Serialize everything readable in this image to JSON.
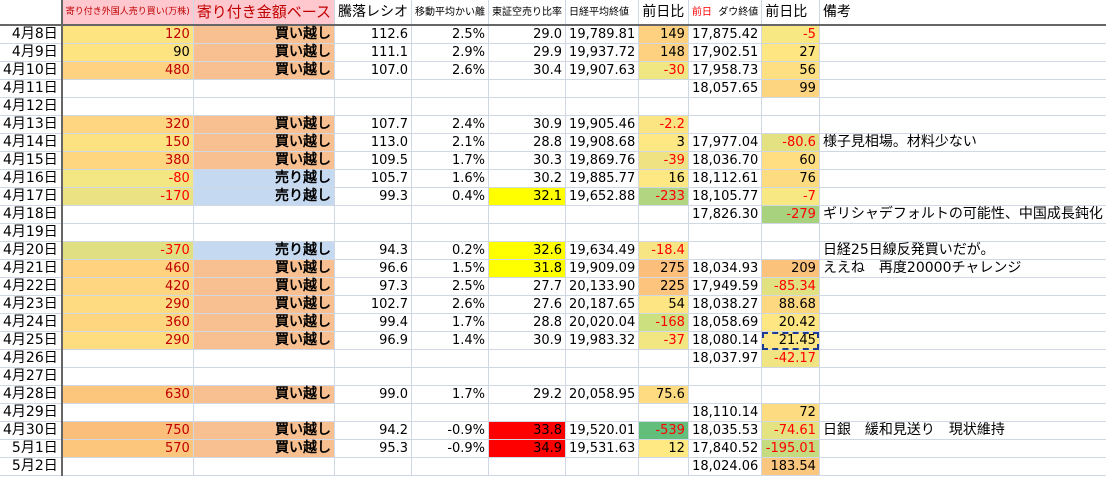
{
  "headers": {
    "date": "",
    "foreign": "寄り付き外国人売り買い(万株)",
    "base": "寄り付き金額ベース",
    "toraku": "騰落レシオ",
    "kairi": "移動平均かい離",
    "karauri": "東証空売り比率",
    "nikkei": "日経平均終値",
    "nikkei_chg": "前日比",
    "dow_prefix": "前日",
    "dow": "ダウ終値",
    "dow_chg": "前日比",
    "note": "備考"
  },
  "colors": {
    "buy_bg": "#f8c090",
    "sell_bg": "#c5d9f1",
    "karauri_warn": "#ffff00",
    "karauri_alert": "#ff0000",
    "negative_text": "#ff0000",
    "positive_foreign_text": "#c00000"
  },
  "rows": [
    {
      "date": "4月8日",
      "foreign": "120",
      "fbg": "#fde481",
      "base": "買い越し",
      "toraku": "112.6",
      "kairi": "2.5%",
      "karauri": "29.0",
      "nikkei": "19,789.81",
      "nchg": "149",
      "nbg": "#fdd17f",
      "dow": "17,875.42",
      "dchg": "-5",
      "dbg": "#f8e883",
      "note": ""
    },
    {
      "date": "4月9日",
      "foreign": "90",
      "fbg": "#fde481",
      "base": "買い越し",
      "toraku": "111.1",
      "kairi": "2.9%",
      "karauri": "29.9",
      "nikkei": "19,937.72",
      "nchg": "148",
      "nbg": "#fdd17f",
      "dow": "17,902.51",
      "dchg": "27",
      "dbg": "#fee683",
      "note": ""
    },
    {
      "date": "4月10日",
      "foreign": "480",
      "fbg": "#fed280",
      "base": "買い越し",
      "toraku": "107.0",
      "kairi": "2.6%",
      "karauri": "30.4",
      "nikkei": "19,907.63",
      "nchg": "-30",
      "nbg": "#f0e682",
      "dow": "17,958.73",
      "dchg": "56",
      "dbg": "#fedf81",
      "note": ""
    },
    {
      "date": "4月11日",
      "foreign": "",
      "base": "",
      "toraku": "",
      "kairi": "",
      "karauri": "",
      "nikkei": "",
      "nchg": "",
      "dow": "18,057.65",
      "dchg": "99",
      "dbg": "#fdd47f",
      "note": ""
    },
    {
      "date": "4月12日",
      "foreign": "",
      "base": "",
      "toraku": "",
      "kairi": "",
      "karauri": "",
      "nikkei": "",
      "nchg": "",
      "dow": "",
      "dchg": "",
      "note": ""
    },
    {
      "date": "4月13日",
      "foreign": "320",
      "fbg": "#fed580",
      "base": "買い越し",
      "toraku": "107.7",
      "kairi": "2.4%",
      "karauri": "30.9",
      "nikkei": "19,905.46",
      "nchg": "-2.2",
      "nbg": "#fbe583",
      "dow": "",
      "dchg": "",
      "note": ""
    },
    {
      "date": "4月14日",
      "foreign": "150",
      "fbg": "#fde282",
      "base": "買い越し",
      "toraku": "113.0",
      "kairi": "2.1%",
      "karauri": "28.8",
      "nikkei": "19,908.68",
      "nchg": "3",
      "nbg": "#fde883",
      "dow": "17,977.04",
      "dchg": "-80.6",
      "dbg": "#e3e182",
      "note": "様子見相場。材料少ない"
    },
    {
      "date": "4月15日",
      "foreign": "380",
      "fbg": "#fed680",
      "base": "買い越し",
      "toraku": "109.5",
      "kairi": "1.7%",
      "karauri": "30.3",
      "nikkei": "19,869.76",
      "nchg": "-39",
      "nbg": "#eee283",
      "dow": "18,036.70",
      "dchg": "60",
      "dbg": "#fede81",
      "note": ""
    },
    {
      "date": "4月16日",
      "foreign": "-80",
      "fbg": "#f3e784",
      "base": "売り越し",
      "toraku": "105.7",
      "kairi": "1.6%",
      "karauri": "30.2",
      "nikkei": "19,885.77",
      "nchg": "16",
      "nbg": "#fde883",
      "dow": "18,112.61",
      "dchg": "76",
      "dbg": "#fddb80",
      "note": ""
    },
    {
      "date": "4月17日",
      "foreign": "-170",
      "fbg": "#eae283",
      "base": "売り越し",
      "toraku": "99.3",
      "kairi": "0.4%",
      "karauri": "32.1",
      "kbg": "#ffff00",
      "nikkei": "19,652.88",
      "nchg": "-233",
      "nbg": "#b1d580",
      "dow": "18,105.77",
      "dchg": "-7",
      "dbg": "#f8e883",
      "note": ""
    },
    {
      "date": "4月18日",
      "foreign": "",
      "base": "",
      "toraku": "",
      "kairi": "",
      "karauri": "",
      "nikkei": "",
      "nchg": "",
      "dow": "17,826.30",
      "dchg": "-279",
      "dbg": "#a9d27f",
      "note": "ギリシャデフォルトの可能性、中国成長鈍化"
    },
    {
      "date": "4月19日",
      "foreign": "",
      "base": "",
      "toraku": "",
      "kairi": "",
      "karauri": "",
      "nikkei": "",
      "nchg": "",
      "dow": "",
      "dchg": "",
      "note": ""
    },
    {
      "date": "4月20日",
      "foreign": "-370",
      "fbg": "#e0e082",
      "base": "売り越し",
      "toraku": "94.3",
      "kairi": "0.2%",
      "karauri": "32.6",
      "kbg": "#ffff00",
      "nikkei": "19,634.49",
      "nchg": "-18.4",
      "nbg": "#f7e583",
      "dow": "",
      "dchg": "",
      "note": "日経25日線反発買いだが。"
    },
    {
      "date": "4月21日",
      "foreign": "460",
      "fbg": "#fed27f",
      "base": "買い越し",
      "toraku": "96.6",
      "kairi": "1.5%",
      "karauri": "31.8",
      "kbg": "#ffff00",
      "nikkei": "19,909.09",
      "nchg": "275",
      "nbg": "#fbbe7b",
      "dow": "18,034.93",
      "dchg": "209",
      "dbg": "#fbc27c",
      "note": "ええね　再度20000チャレンジ"
    },
    {
      "date": "4月22日",
      "foreign": "420",
      "fbg": "#fed581",
      "base": "買い越し",
      "toraku": "97.3",
      "kairi": "2.5%",
      "karauri": "27.7",
      "nikkei": "20,133.90",
      "nchg": "225",
      "nbg": "#fcc47c",
      "dow": "17,949.59",
      "dchg": "-85.34",
      "dbg": "#e1e182",
      "note": ""
    },
    {
      "date": "4月23日",
      "foreign": "290",
      "fbg": "#fedb81",
      "base": "買い越し",
      "toraku": "102.7",
      "kairi": "2.6%",
      "karauri": "27.6",
      "nikkei": "20,187.65",
      "nchg": "54",
      "nbg": "#fee583",
      "dow": "18,038.27",
      "dchg": "88.68",
      "dbg": "#fdd880",
      "note": ""
    },
    {
      "date": "4月24日",
      "foreign": "360",
      "fbg": "#fed680",
      "base": "買い越し",
      "toraku": "99.4",
      "kairi": "1.7%",
      "karauri": "28.8",
      "nikkei": "20,020.04",
      "nchg": "-168",
      "nbg": "#cde07f",
      "dow": "18,058.69",
      "dchg": "20.42",
      "dbg": "#fee683",
      "note": ""
    },
    {
      "date": "4月25日",
      "foreign": "290",
      "fbg": "#fedd81",
      "base": "買い越し",
      "toraku": "96.9",
      "kairi": "1.4%",
      "karauri": "30.9",
      "nikkei": "19,983.32",
      "nchg": "-37",
      "nbg": "#f2e683",
      "dow": "18,080.14",
      "dchg": "21.45",
      "dbg": "#fee683",
      "selected": true,
      "note": ""
    },
    {
      "date": "4月26日",
      "foreign": "",
      "base": "",
      "toraku": "",
      "kairi": "",
      "karauri": "",
      "nikkei": "",
      "nchg": "",
      "dow": "18,037.97",
      "dchg": "-42.17",
      "dbg": "#f0e582",
      "note": ""
    },
    {
      "date": "4月27日",
      "foreign": "",
      "base": "",
      "toraku": "",
      "kairi": "",
      "karauri": "",
      "nikkei": "",
      "nchg": "",
      "dow": "",
      "dchg": "",
      "note": ""
    },
    {
      "date": "4月28日",
      "foreign": "630",
      "fbg": "#fcc77d",
      "base": "買い越し",
      "toraku": "99.0",
      "kairi": "1.7%",
      "karauri": "29.2",
      "nikkei": "20,058.95",
      "nchg": "75.6",
      "nbg": "#fedb81",
      "dow": "",
      "dchg": "",
      "note": ""
    },
    {
      "date": "4月29日",
      "foreign": "",
      "base": "",
      "toraku": "",
      "kairi": "",
      "karauri": "",
      "nikkei": "",
      "nchg": "",
      "dow": "18,110.14",
      "dchg": "72",
      "dbg": "#fddb80",
      "note": ""
    },
    {
      "date": "4月30日",
      "foreign": "750",
      "fbg": "#fbbf7b",
      "base": "買い越し",
      "toraku": "94.2",
      "kairi": "-0.9%",
      "karauri": "33.8",
      "kbg": "#ff0000",
      "nikkei": "19,520.01",
      "nchg": "-539",
      "nbg": "#63be7b",
      "dow": "18,035.53",
      "dchg": "-74.61",
      "dbg": "#e5e282",
      "note": "日銀　緩和見送り　現状維持"
    },
    {
      "date": "5月1日",
      "foreign": "570",
      "fbg": "#fcc67d",
      "base": "買い越し",
      "toraku": "95.3",
      "kairi": "-0.9%",
      "karauri": "34.9",
      "kbg": "#ff0000",
      "nikkei": "19,531.63",
      "nchg": "12",
      "nbg": "#fee983",
      "dow": "17,840.52",
      "dchg": "-195.01",
      "dbg": "#c4db7f",
      "note": ""
    },
    {
      "date": "5月2日",
      "foreign": "",
      "base": "",
      "toraku": "",
      "kairi": "",
      "karauri": "",
      "nikkei": "",
      "nchg": "",
      "dow": "18,024.06",
      "dchg": "183.54",
      "dbg": "#fbc67d",
      "note": ""
    }
  ]
}
